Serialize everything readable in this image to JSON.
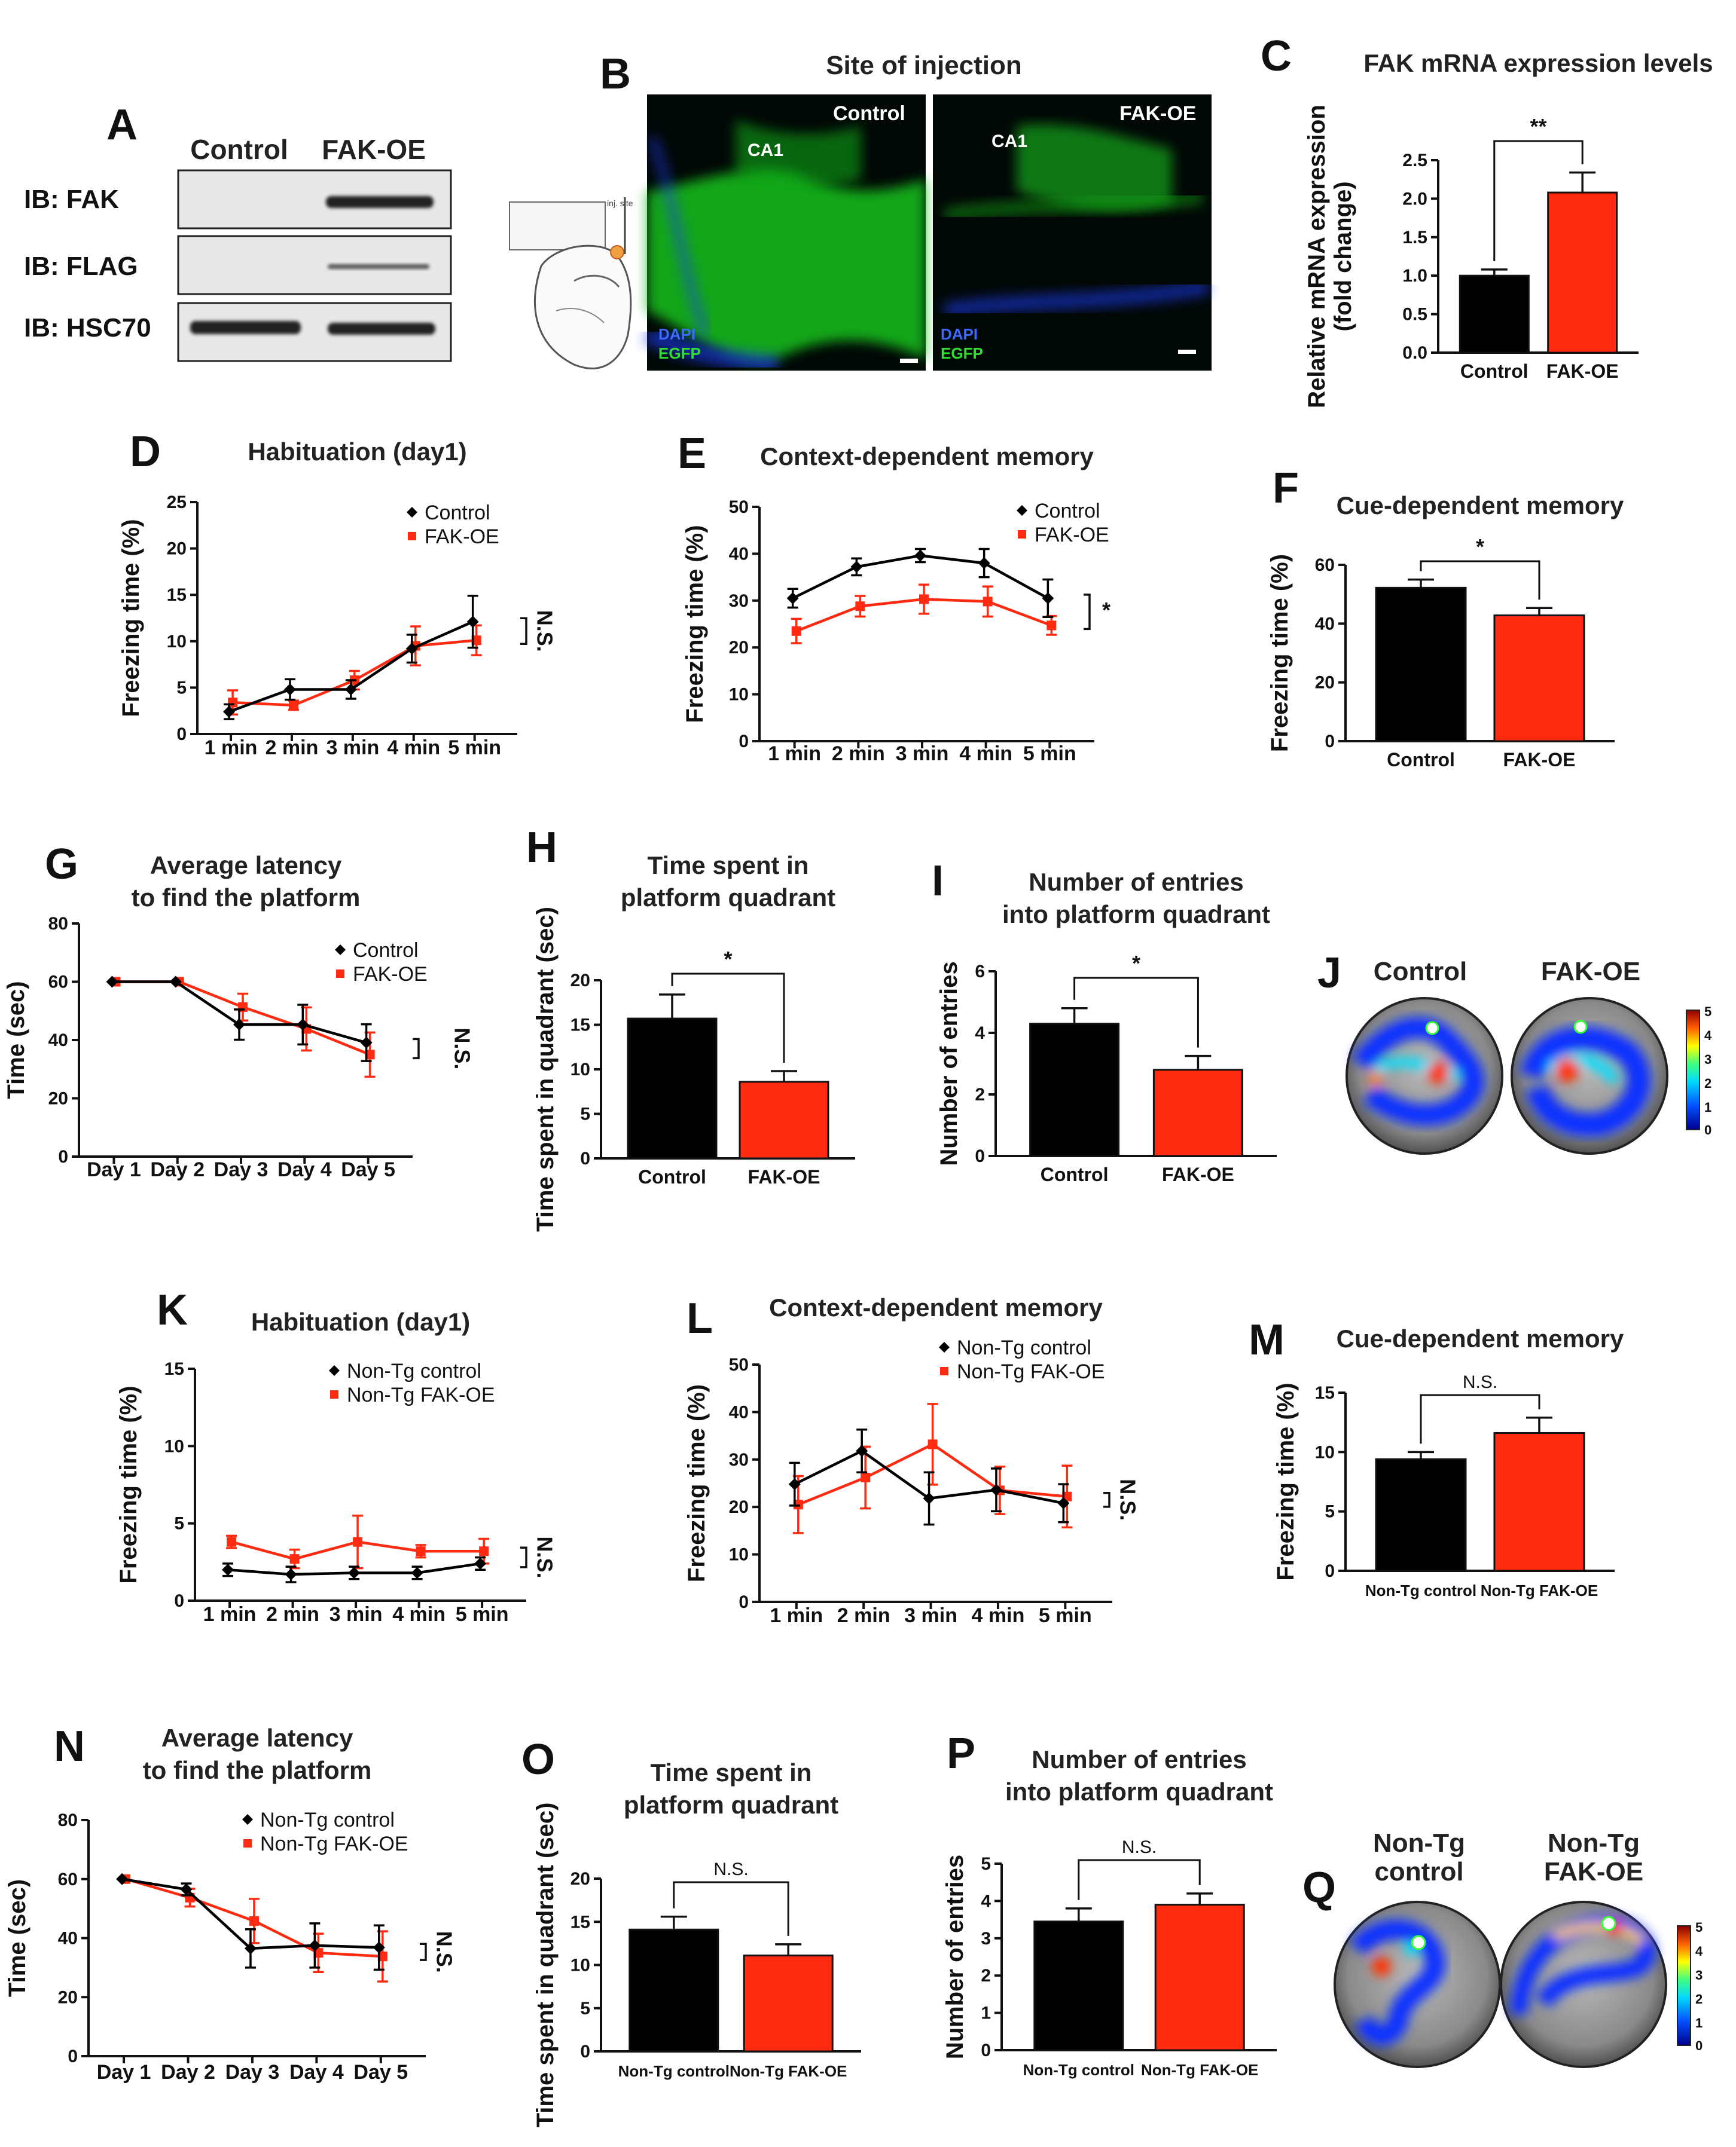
{
  "colors": {
    "control": "#000000",
    "fakoe": "#ff2a10",
    "bar_edge": "#111111"
  },
  "panel_a": {
    "letter": "A",
    "columns": [
      "Control",
      "FAK-OE"
    ],
    "rows": [
      "IB: FAK",
      "IB: FLAG",
      "IB: HSC70"
    ]
  },
  "panel_b": {
    "letter": "B",
    "title": "Site of injection",
    "left": {
      "condition": "Control",
      "region": "CA1",
      "stain1": "DAPI",
      "stain2": "EGFP"
    },
    "right": {
      "condition": "FAK-OE",
      "region": "CA1",
      "stain1": "DAPI",
      "stain2": "EGFP"
    }
  },
  "panel_j": {
    "letter": "J",
    "labels": [
      "Control",
      "FAK-OE"
    ],
    "scale": [
      "5",
      "4",
      "3",
      "2",
      "1",
      "0"
    ]
  },
  "panel_q": {
    "letter": "Q",
    "labels": [
      [
        "Non-Tg",
        "control"
      ],
      [
        "Non-Tg",
        "FAK-OE"
      ]
    ],
    "scale": [
      "5",
      "4",
      "3",
      "2",
      "1",
      "0"
    ]
  },
  "chart_data": [
    {
      "id": "C",
      "type": "bar",
      "title": "FAK mRNA expression levels",
      "ylabel": [
        "Relative mRNA expression",
        "(fold change)"
      ],
      "categories": [
        "Control",
        "FAK-OE"
      ],
      "values": [
        1.0,
        2.08
      ],
      "errors": [
        0.08,
        0.26
      ],
      "ylim": [
        0,
        2.5
      ],
      "yticks": [
        "0.0",
        "0.5",
        "1.0",
        "1.5",
        "2.0",
        "2.5"
      ],
      "significance": "**"
    },
    {
      "id": "D",
      "type": "line",
      "title": "Habituation (day1)",
      "ylabel": "Freezing time (%)",
      "categories": [
        "1 min",
        "2 min",
        "3 min",
        "4 min",
        "5 min"
      ],
      "ylim": [
        0,
        25
      ],
      "yticks": [
        "0",
        "5",
        "10",
        "15",
        "20",
        "25"
      ],
      "series": [
        {
          "name": "Control",
          "values": [
            2.4,
            4.8,
            4.8,
            9.2,
            12.1
          ],
          "errors": [
            0.8,
            1.1,
            1.0,
            1.5,
            2.8
          ]
        },
        {
          "name": "FAK-OE",
          "values": [
            3.4,
            3.1,
            5.8,
            9.5,
            10.1
          ],
          "errors": [
            1.3,
            0.5,
            1.0,
            2.1,
            1.6
          ]
        }
      ],
      "significance": "N.S."
    },
    {
      "id": "E",
      "type": "line",
      "title": "Context-dependent memory",
      "ylabel": "Freezing time (%)",
      "categories": [
        "1 min",
        "2 min",
        "3 min",
        "4 min",
        "5 min"
      ],
      "ylim": [
        0,
        50
      ],
      "yticks": [
        "0",
        "10",
        "20",
        "30",
        "40",
        "50"
      ],
      "series": [
        {
          "name": "Control",
          "values": [
            30.5,
            37.2,
            39.6,
            38.0,
            30.5
          ],
          "errors": [
            2.0,
            1.8,
            1.4,
            3.0,
            4.0
          ]
        },
        {
          "name": "FAK-OE",
          "values": [
            23.5,
            28.8,
            30.3,
            29.8,
            24.7
          ],
          "errors": [
            2.6,
            2.2,
            3.1,
            3.2,
            2.0
          ]
        }
      ],
      "significance": "*"
    },
    {
      "id": "F",
      "type": "bar",
      "title": "Cue-dependent memory",
      "ylabel": "Freezing time (%)",
      "categories": [
        "Control",
        "FAK-OE"
      ],
      "values": [
        52.2,
        42.8
      ],
      "errors": [
        2.8,
        2.5
      ],
      "ylim": [
        0,
        60
      ],
      "yticks": [
        "0",
        "20",
        "40",
        "60"
      ],
      "significance": "*"
    },
    {
      "id": "G",
      "type": "line",
      "title": [
        "Average latency",
        "to find the platform"
      ],
      "ylabel": "Time (sec)",
      "categories": [
        "Day 1",
        "Day 2",
        "Day 3",
        "Day 4",
        "Day 5"
      ],
      "ylim": [
        0,
        80
      ],
      "yticks": [
        "0",
        "20",
        "40",
        "60",
        "80"
      ],
      "series": [
        {
          "name": "Control",
          "values": [
            60,
            60,
            45.3,
            45.3,
            39.1
          ],
          "errors": [
            0,
            0,
            5.2,
            6.8,
            6.3
          ]
        },
        {
          "name": "FAK-OE",
          "values": [
            60,
            60,
            51.3,
            43.8,
            35.0
          ],
          "errors": [
            0,
            0,
            4.6,
            7.4,
            7.6
          ]
        }
      ],
      "significance": "N.S."
    },
    {
      "id": "H",
      "type": "bar",
      "title": [
        "Time spent in",
        "platform quadrant"
      ],
      "ylabel": "Time spent in quadrant (sec)",
      "categories": [
        "Control",
        "FAK-OE"
      ],
      "values": [
        15.7,
        8.6
      ],
      "errors": [
        2.7,
        1.2
      ],
      "ylim": [
        0,
        20
      ],
      "yticks": [
        "0",
        "5",
        "10",
        "15",
        "20"
      ],
      "significance": "*"
    },
    {
      "id": "I",
      "type": "bar",
      "title": [
        "Number of entries",
        "into platform quadrant"
      ],
      "ylabel": "Number of entries",
      "categories": [
        "Control",
        "FAK-OE"
      ],
      "values": [
        4.3,
        2.8
      ],
      "errors": [
        0.5,
        0.45
      ],
      "ylim": [
        0,
        6
      ],
      "yticks": [
        "0",
        "2",
        "4",
        "6"
      ],
      "significance": "*"
    },
    {
      "id": "K",
      "type": "line",
      "title": "Habituation (day1)",
      "ylabel": "Freezing time (%)",
      "categories": [
        "1 min",
        "2 min",
        "3 min",
        "4 min",
        "5 min"
      ],
      "ylim": [
        0,
        15
      ],
      "yticks": [
        "0",
        "5",
        "10",
        "15"
      ],
      "series": [
        {
          "name": "Non-Tg control",
          "values": [
            2.0,
            1.7,
            1.8,
            1.8,
            2.4
          ],
          "errors": [
            0.4,
            0.5,
            0.4,
            0.4,
            0.4
          ]
        },
        {
          "name": "Non-Tg FAK-OE",
          "values": [
            3.8,
            2.7,
            3.8,
            3.2,
            3.2
          ],
          "errors": [
            0.4,
            0.6,
            1.7,
            0.4,
            0.8
          ]
        }
      ],
      "significance": "N.S."
    },
    {
      "id": "L",
      "type": "line",
      "title": "Context-dependent memory",
      "ylabel": "Freezing time (%)",
      "categories": [
        "1 min",
        "2 min",
        "3 min",
        "4 min",
        "5 min"
      ],
      "ylim": [
        0,
        50
      ],
      "yticks": [
        "0",
        "10",
        "20",
        "30",
        "40",
        "50"
      ],
      "series": [
        {
          "name": "Non-Tg control",
          "values": [
            24.8,
            31.8,
            21.8,
            23.6,
            20.8
          ],
          "errors": [
            4.5,
            4.5,
            5.5,
            4.5,
            4.0
          ]
        },
        {
          "name": "Non-Tg FAK-OE",
          "values": [
            20.5,
            26.2,
            33.2,
            23.5,
            22.2
          ],
          "errors": [
            6.0,
            6.5,
            8.5,
            5.0,
            6.5
          ]
        }
      ],
      "significance": "N.S."
    },
    {
      "id": "M",
      "type": "bar",
      "title": "Cue-dependent memory",
      "ylabel": "Freezing time (%)",
      "categories": [
        "Non-Tg control",
        "Non-Tg FAK-OE"
      ],
      "values": [
        9.4,
        11.6
      ],
      "errors": [
        0.6,
        1.3
      ],
      "ylim": [
        0,
        15
      ],
      "yticks": [
        "0",
        "5",
        "10",
        "15"
      ],
      "significance": "N.S."
    },
    {
      "id": "N",
      "type": "line",
      "title": [
        "Average latency",
        "to find the platform"
      ],
      "ylabel": "Time (sec)",
      "categories": [
        "Day 1",
        "Day 2",
        "Day 3",
        "Day 4",
        "Day 5"
      ],
      "ylim": [
        0,
        80
      ],
      "yticks": [
        "0",
        "20",
        "40",
        "60",
        "80"
      ],
      "series": [
        {
          "name": "Non-Tg control",
          "values": [
            60,
            56.5,
            36.5,
            37.5,
            36.8
          ],
          "errors": [
            0,
            2.0,
            6.5,
            7.5,
            7.5
          ]
        },
        {
          "name": "Non-Tg FAK-OE",
          "values": [
            60,
            53.7,
            45.8,
            35.0,
            33.8
          ],
          "errors": [
            0,
            3.0,
            7.5,
            6.5,
            8.5
          ]
        }
      ],
      "significance": "N.S."
    },
    {
      "id": "O",
      "type": "bar",
      "title": [
        "Time spent in",
        "platform quadrant"
      ],
      "ylabel": "Time spent in quadrant (sec)",
      "categories": [
        "Non-Tg control",
        "Non-Tg FAK-OE"
      ],
      "values": [
        14.1,
        11.1
      ],
      "errors": [
        1.5,
        1.3
      ],
      "ylim": [
        0,
        20
      ],
      "yticks": [
        "0",
        "5",
        "10",
        "15",
        "20"
      ],
      "significance": "N.S."
    },
    {
      "id": "P",
      "type": "bar",
      "title": [
        "Number of entries",
        "into platform quadrant"
      ],
      "ylabel": "Number of entries",
      "categories": [
        "Non-Tg control",
        "Non-Tg FAK-OE"
      ],
      "values": [
        3.45,
        3.9
      ],
      "errors": [
        0.35,
        0.3
      ],
      "ylim": [
        0,
        5
      ],
      "yticks": [
        "0",
        "1",
        "2",
        "3",
        "4",
        "5"
      ],
      "significance": "N.S."
    }
  ]
}
